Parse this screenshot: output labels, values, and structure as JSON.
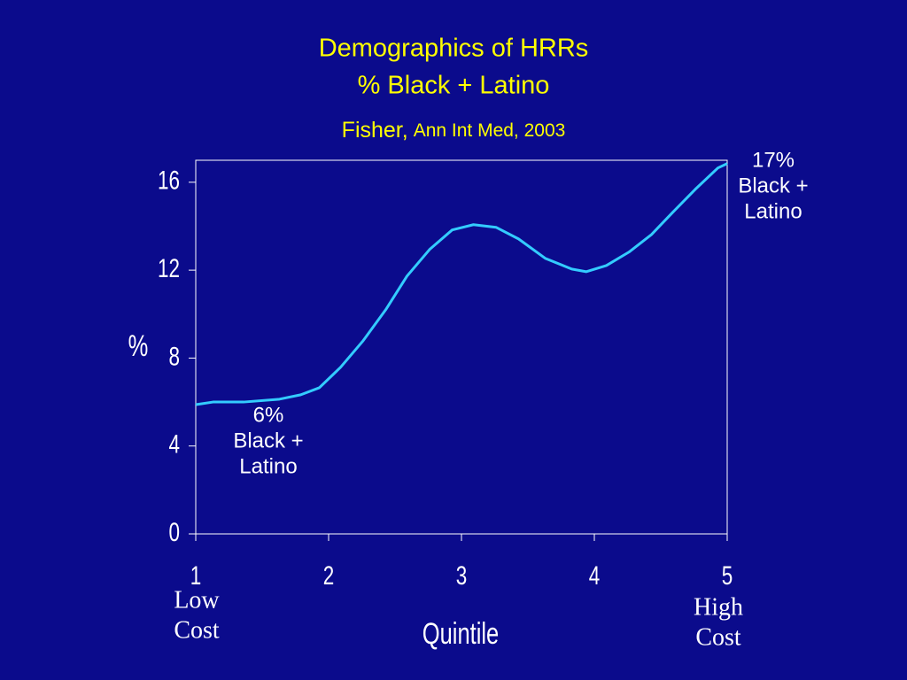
{
  "chart_data": {
    "type": "line",
    "title": [
      "Demographics of HRRs",
      "% Black + Latino"
    ],
    "subtitle": {
      "author": "Fisher,",
      "source": "Ann Int Med, 2003"
    },
    "x_label": "Quintile",
    "y_label": "%",
    "x": [
      1,
      1.13,
      1.36,
      1.63,
      1.79,
      1.93,
      2.09,
      2.26,
      2.43,
      2.59,
      2.76,
      2.93,
      3.09,
      3.26,
      3.43,
      3.63,
      3.83,
      3.94,
      4.09,
      4.26,
      4.43,
      4.59,
      4.76,
      4.93,
      5
    ],
    "series": [
      {
        "name": "% Black + Latino",
        "color": "#33ccff",
        "values": [
          5.88,
          6.0,
          6.0,
          6.13,
          6.33,
          6.65,
          7.58,
          8.79,
          10.2,
          11.73,
          12.94,
          13.83,
          14.07,
          13.95,
          13.42,
          12.54,
          12.05,
          11.93,
          12.21,
          12.82,
          13.62,
          14.63,
          15.68,
          16.65,
          16.85
        ]
      }
    ],
    "xlim": [
      1,
      5
    ],
    "xticks": [
      1,
      2,
      3,
      4,
      5
    ],
    "ylim": [
      0,
      17
    ],
    "yticks": [
      0,
      4,
      8,
      12,
      16
    ],
    "annotations": [
      {
        "lines": [
          "17%",
          "Black +",
          "Latino"
        ]
      },
      {
        "lines": [
          "6%",
          "Black +",
          "Latino"
        ]
      }
    ],
    "x_end_labels": [
      {
        "lines": [
          "Low",
          "Cost"
        ]
      },
      {
        "lines": [
          "High",
          "Cost"
        ]
      }
    ]
  }
}
